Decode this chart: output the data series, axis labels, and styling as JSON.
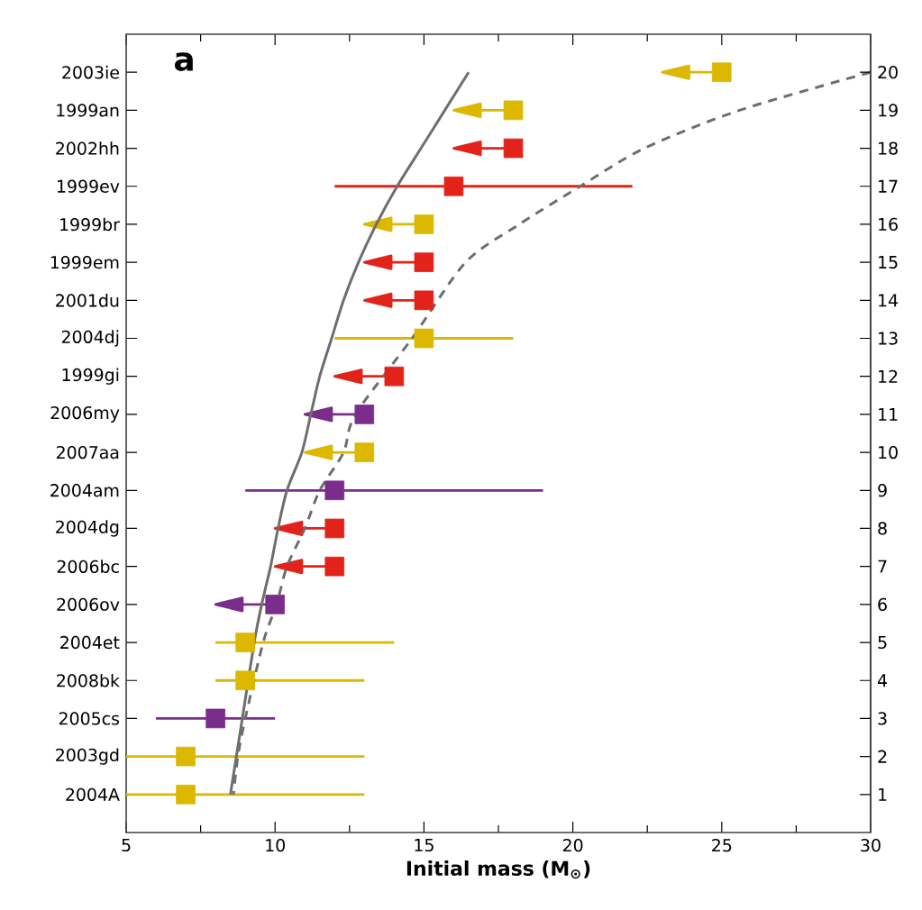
{
  "chart_data": {
    "type": "scatter",
    "orientation": "horizontal",
    "xlabel": "Initial mass (M$_{⊙}$)",
    "annotations": [
      "a"
    ],
    "xlim": [
      5,
      30
    ],
    "xticks": [
      5,
      10,
      15,
      20,
      25,
      30
    ],
    "categories": [
      "2003ie",
      "1999an",
      "2002hh",
      "1999ev",
      "1999br",
      "1999em",
      "2001du",
      "2004dj",
      "1999gi",
      "2006my",
      "2007aa",
      "2004am",
      "2004dg",
      "2006bc",
      "2006ov",
      "2004et",
      "2008bk",
      "2005cs",
      "2003gd",
      "2004A"
    ],
    "y2_categories": [
      "20",
      "19",
      "18",
      "17",
      "16",
      "15",
      "14",
      "13",
      "12",
      "11",
      "10",
      "9",
      "8",
      "7",
      "6",
      "5",
      "4",
      "3",
      "2",
      "1"
    ],
    "series": [
      {
        "type": "line",
        "color": "#6e6e6e",
        "line_style": "solid",
        "values": [
          16.5,
          15.7,
          14.9,
          14.1,
          13.4,
          12.8,
          12.3,
          11.9,
          11.5,
          11.2,
          10.9,
          10.4,
          10.1,
          9.85,
          9.55,
          9.3,
          null,
          8.9,
          8.7,
          8.5
        ]
      },
      {
        "type": "line",
        "color": "#6e6e6e",
        "line_style": "dashed",
        "values": [
          30,
          25.6,
          22.4,
          20.25,
          18.2,
          16.4,
          null,
          14.6,
          null,
          12.7,
          12.3,
          11.5,
          11.0,
          10.4,
          10.05,
          9.6,
          null,
          9.0,
          8.75,
          8.6
        ]
      },
      {
        "color": "#dcb800",
        "marker": "square",
        "values": [
          25,
          18,
          null,
          null,
          15,
          null,
          null,
          15,
          null,
          null,
          13,
          null,
          null,
          null,
          null,
          9,
          9,
          null,
          7,
          7
        ],
        "errors": [
          [
            23,
            25
          ],
          [
            16,
            18
          ],
          null,
          null,
          [
            13,
            15
          ],
          null,
          null,
          [
            12,
            18
          ],
          null,
          null,
          [
            11,
            13
          ],
          null,
          null,
          null,
          null,
          [
            8,
            14
          ],
          [
            8,
            13
          ],
          null,
          [
            5,
            13
          ],
          [
            5,
            13
          ]
        ]
      },
      {
        "color": "#e2231a",
        "marker": "square",
        "values": [
          null,
          null,
          18,
          16,
          null,
          15,
          15,
          null,
          14,
          null,
          null,
          null,
          12,
          12,
          null,
          null,
          null,
          null,
          null,
          null
        ],
        "errors": [
          null,
          null,
          [
            16,
            18
          ],
          [
            12,
            22
          ],
          null,
          [
            13,
            15
          ],
          [
            13,
            15
          ],
          null,
          [
            12,
            14
          ],
          null,
          null,
          null,
          [
            10,
            12
          ],
          [
            10,
            12
          ],
          null,
          null,
          null,
          null,
          null,
          null
        ]
      },
      {
        "color": "#7b2d8b",
        "marker": "square",
        "values": [
          null,
          null,
          null,
          null,
          null,
          null,
          null,
          null,
          null,
          13,
          null,
          12,
          null,
          null,
          10,
          null,
          null,
          8,
          null,
          null
        ],
        "errors": [
          null,
          null,
          null,
          null,
          null,
          null,
          null,
          null,
          null,
          [
            11,
            13
          ],
          null,
          [
            9,
            19
          ],
          null,
          null,
          [
            8,
            10
          ],
          null,
          null,
          [
            6,
            10
          ],
          null,
          null
        ]
      }
    ]
  }
}
